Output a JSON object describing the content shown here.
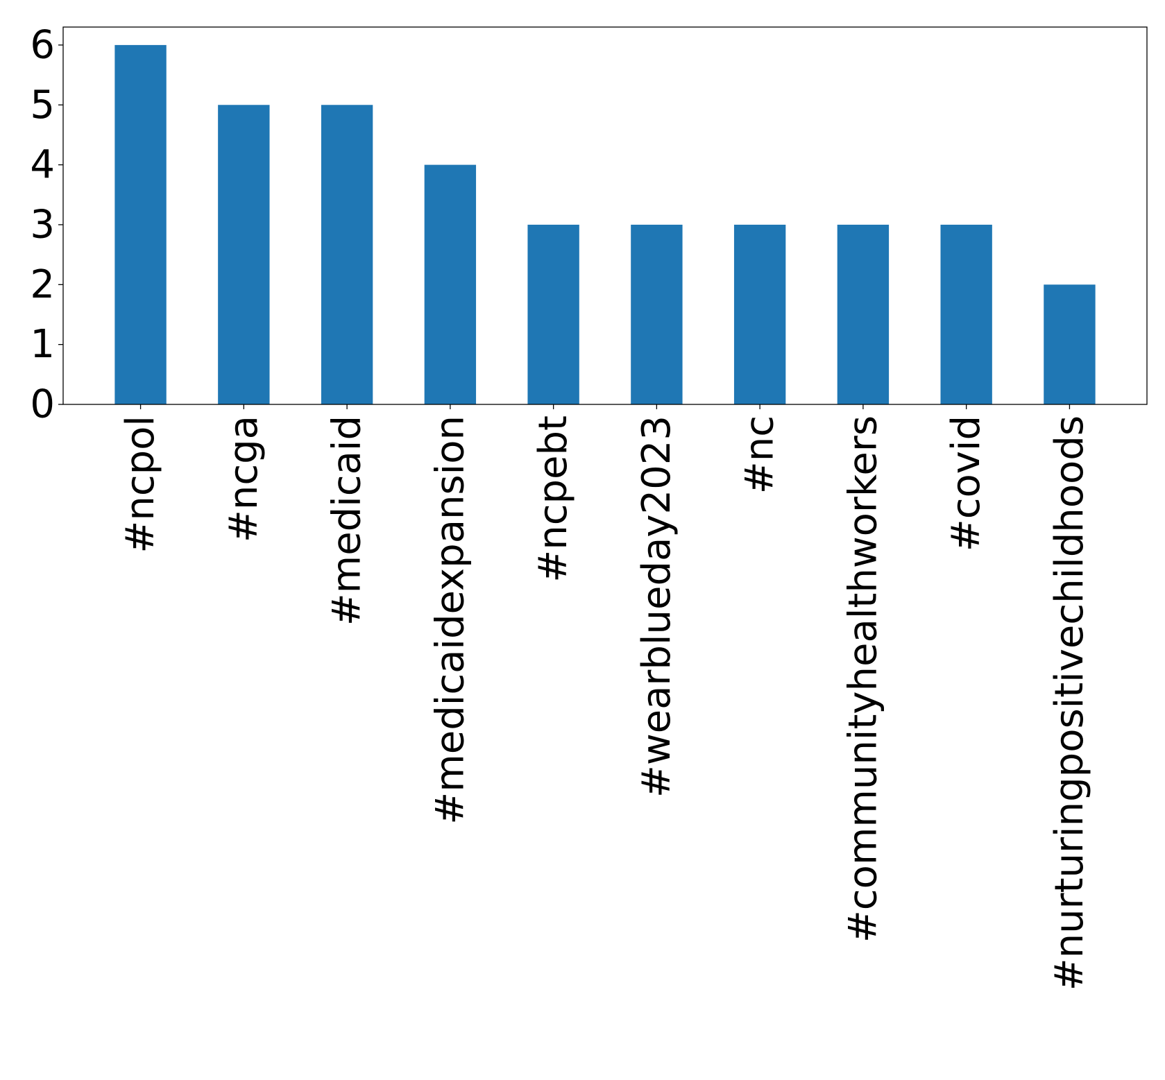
{
  "chart_data": {
    "type": "bar",
    "title": "",
    "xlabel": "",
    "ylabel": "",
    "categories": [
      "#ncpol",
      "#ncga",
      "#medicaid",
      "#medicaidexpansion",
      "#ncpebt",
      "#wearblueday2023",
      "#nc",
      "#communityhealthworkers",
      "#covid",
      "#nurturingpositivechildhoods"
    ],
    "values": [
      6,
      5,
      5,
      4,
      3,
      3,
      3,
      3,
      3,
      2
    ],
    "ylim": [
      0,
      6.3
    ],
    "yticks": [
      0,
      1,
      2,
      3,
      4,
      5,
      6
    ],
    "grid": false,
    "legend": "none",
    "bar_color": "#1f77b4"
  }
}
